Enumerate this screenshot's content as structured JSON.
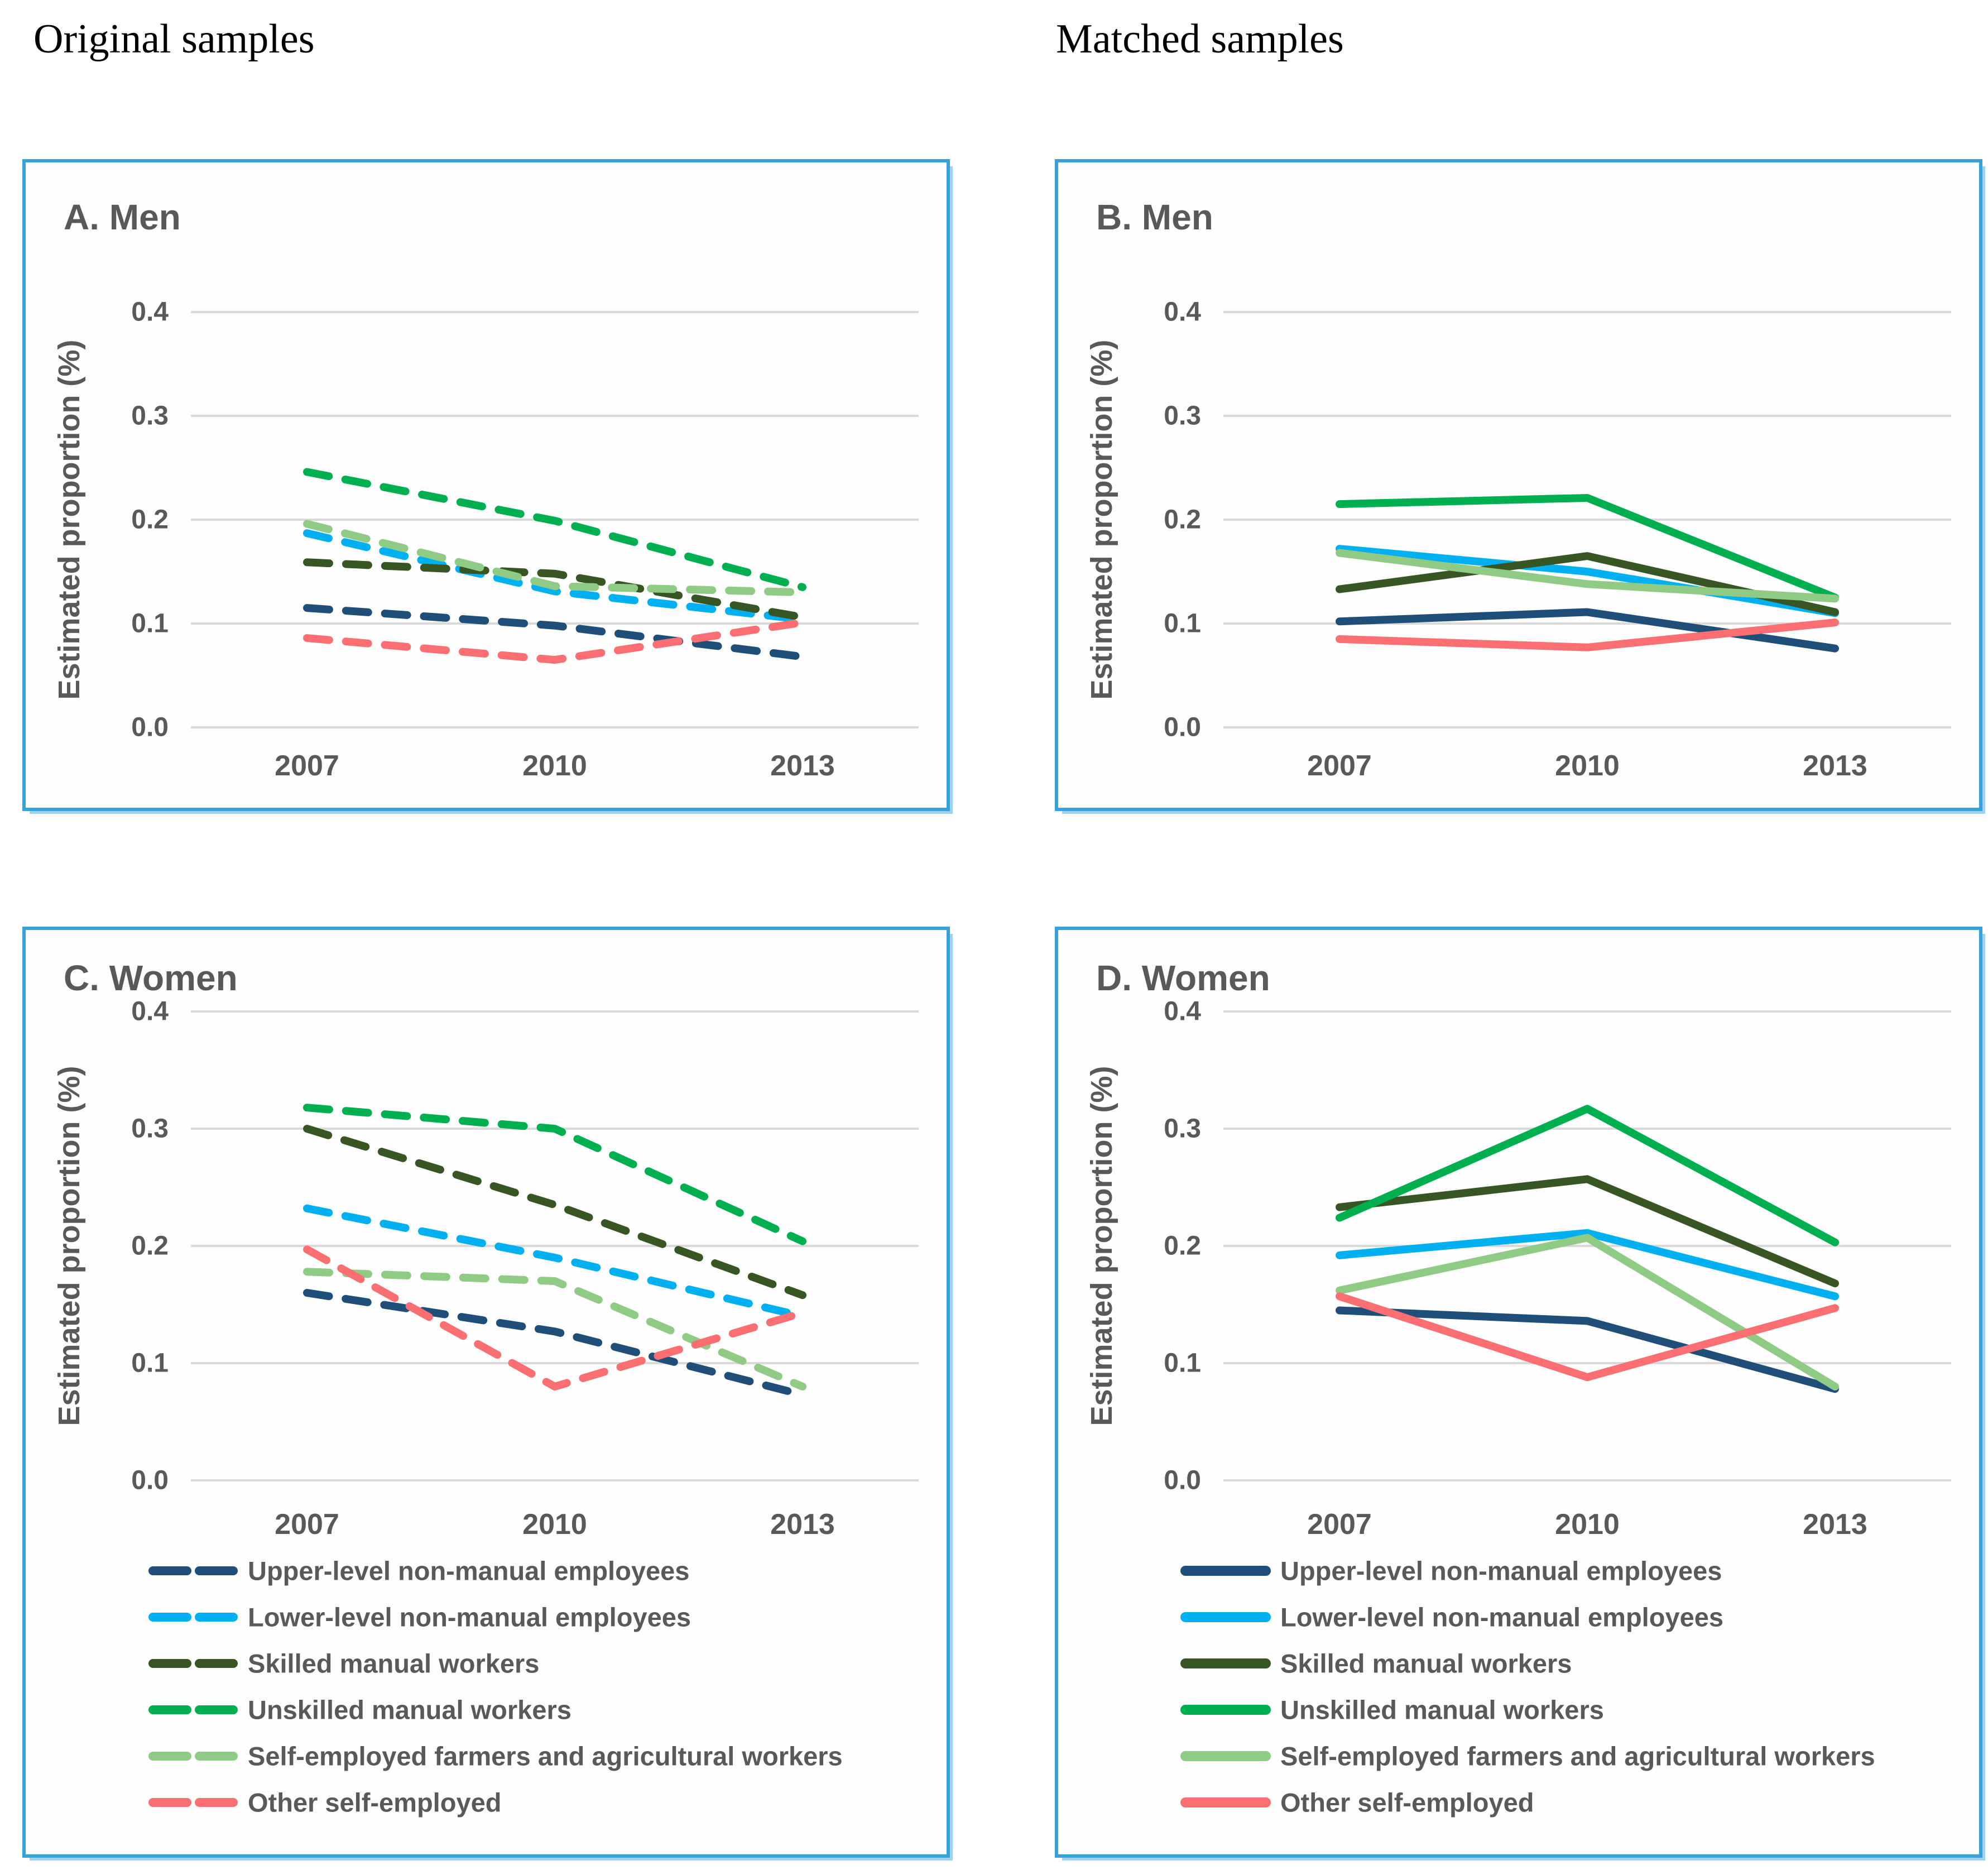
{
  "page": {
    "header_left": "Original samples",
    "header_right": "Matched samples"
  },
  "colors": {
    "upper": "#1F4E79",
    "lower": "#00B0F0",
    "skilled": "#375623",
    "unskilled": "#00B050",
    "farmers": "#90CB85",
    "other": "#FB6F72",
    "panel_border": "#36A2DA",
    "grid": "#D9D9D9",
    "chart_text": "#595959"
  },
  "axis": {
    "ylabel": "Estimated proportion (%)",
    "ytick_labels": [
      "0.0",
      "0.1",
      "0.2",
      "0.3",
      "0.4"
    ],
    "xtick_labels": [
      "2007",
      "2010",
      "2013"
    ]
  },
  "legend_labels": {
    "upper": "Upper-level non-manual employees",
    "lower": "Lower-level non-manual employees",
    "skilled": "Skilled manual workers",
    "unskilled": "Unskilled manual workers",
    "farmers": "Self-employed farmers and agricultural workers",
    "other": "Other self-employed"
  },
  "chart_data": [
    {
      "type": "line",
      "title": "A. Men",
      "line_style": "dashed",
      "x": [
        2007,
        2010,
        2013
      ],
      "xlabel": "",
      "ylabel": "Estimated proportion (%)",
      "ylim": [
        0.0,
        0.4
      ],
      "grid": true,
      "legend": false,
      "series": [
        {
          "name": "Upper-level non-manual employees",
          "color_key": "upper",
          "values": [
            0.115,
            0.098,
            0.068
          ]
        },
        {
          "name": "Lower-level non-manual employees",
          "color_key": "lower",
          "values": [
            0.187,
            0.131,
            0.104
          ]
        },
        {
          "name": "Skilled manual workers",
          "color_key": "skilled",
          "values": [
            0.159,
            0.148,
            0.106
          ]
        },
        {
          "name": "Unskilled manual workers",
          "color_key": "unskilled",
          "values": [
            0.246,
            0.199,
            0.135
          ]
        },
        {
          "name": "Self-employed farmers and agricultural workers",
          "color_key": "farmers",
          "values": [
            0.196,
            0.136,
            0.13
          ]
        },
        {
          "name": "Other self-employed",
          "color_key": "other",
          "values": [
            0.086,
            0.065,
            0.101
          ]
        }
      ]
    },
    {
      "type": "line",
      "title": "B. Men",
      "line_style": "solid",
      "x": [
        2007,
        2010,
        2013
      ],
      "xlabel": "",
      "ylabel": "Estimated proportion (%)",
      "ylim": [
        0.0,
        0.4
      ],
      "grid": true,
      "legend": false,
      "series": [
        {
          "name": "Upper-level non-manual employees",
          "color_key": "upper",
          "values": [
            0.102,
            0.111,
            0.076
          ]
        },
        {
          "name": "Lower-level non-manual employees",
          "color_key": "lower",
          "values": [
            0.172,
            0.15,
            0.11
          ]
        },
        {
          "name": "Skilled manual workers",
          "color_key": "skilled",
          "values": [
            0.133,
            0.165,
            0.111
          ]
        },
        {
          "name": "Unskilled manual workers",
          "color_key": "unskilled",
          "values": [
            0.215,
            0.221,
            0.125
          ]
        },
        {
          "name": "Self-employed farmers and agricultural workers",
          "color_key": "farmers",
          "values": [
            0.168,
            0.138,
            0.124
          ]
        },
        {
          "name": "Other self-employed",
          "color_key": "other",
          "values": [
            0.085,
            0.077,
            0.101
          ]
        }
      ]
    },
    {
      "type": "line",
      "title": "C. Women",
      "line_style": "dashed",
      "x": [
        2007,
        2010,
        2013
      ],
      "xlabel": "",
      "ylabel": "Estimated proportion (%)",
      "ylim": [
        0.0,
        0.4
      ],
      "grid": true,
      "legend": true,
      "series": [
        {
          "name": "Upper-level non-manual employees",
          "color_key": "upper",
          "values": [
            0.16,
            0.127,
            0.073
          ]
        },
        {
          "name": "Lower-level non-manual employees",
          "color_key": "lower",
          "values": [
            0.232,
            0.19,
            0.14
          ]
        },
        {
          "name": "Skilled manual workers",
          "color_key": "skilled",
          "values": [
            0.3,
            0.235,
            0.158
          ]
        },
        {
          "name": "Unskilled manual workers",
          "color_key": "unskilled",
          "values": [
            0.318,
            0.3,
            0.204
          ]
        },
        {
          "name": "Self-employed farmers and agricultural workers",
          "color_key": "farmers",
          "values": [
            0.178,
            0.17,
            0.08
          ]
        },
        {
          "name": "Other self-employed",
          "color_key": "other",
          "values": [
            0.197,
            0.08,
            0.143
          ]
        }
      ]
    },
    {
      "type": "line",
      "title": "D. Women",
      "line_style": "solid",
      "x": [
        2007,
        2010,
        2013
      ],
      "xlabel": "",
      "ylabel": "Estimated proportion (%)",
      "ylim": [
        0.0,
        0.4
      ],
      "grid": true,
      "legend": true,
      "series": [
        {
          "name": "Upper-level non-manual employees",
          "color_key": "upper",
          "values": [
            0.145,
            0.136,
            0.078
          ]
        },
        {
          "name": "Lower-level non-manual employees",
          "color_key": "lower",
          "values": [
            0.192,
            0.211,
            0.157
          ]
        },
        {
          "name": "Skilled manual workers",
          "color_key": "skilled",
          "values": [
            0.233,
            0.257,
            0.168
          ]
        },
        {
          "name": "Unskilled manual workers",
          "color_key": "unskilled",
          "values": [
            0.224,
            0.317,
            0.203
          ]
        },
        {
          "name": "Self-employed farmers and agricultural workers",
          "color_key": "farmers",
          "values": [
            0.162,
            0.207,
            0.08
          ]
        },
        {
          "name": "Other self-employed",
          "color_key": "other",
          "values": [
            0.157,
            0.088,
            0.147
          ]
        }
      ]
    }
  ]
}
